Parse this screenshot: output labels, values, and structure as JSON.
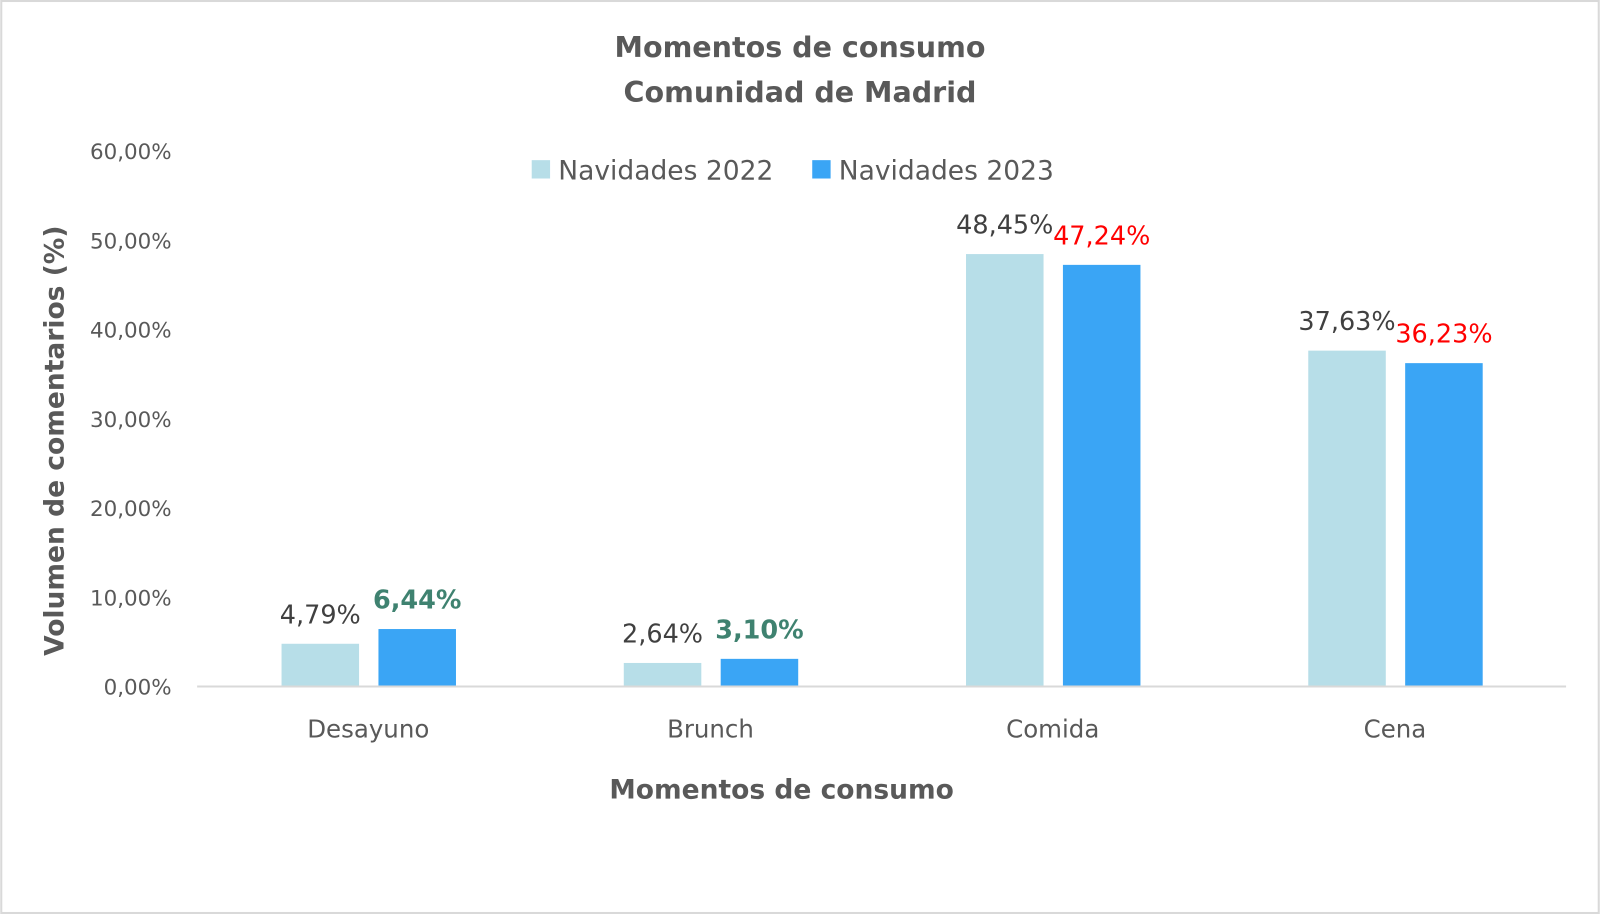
{
  "chart_data": {
    "type": "bar",
    "title": [
      "Momentos de consumo",
      "Comunidad de Madrid"
    ],
    "xlabel": "Momentos de consumo",
    "ylabel": "Volumen de comentarios (%)",
    "categories": [
      "Desayuno",
      "Brunch",
      "Comida",
      "Cena"
    ],
    "ylim": [
      0,
      60
    ],
    "yticks": [
      0,
      10,
      20,
      30,
      40,
      50,
      60
    ],
    "ytick_labels": [
      "0,00%",
      "10,00%",
      "20,00%",
      "30,00%",
      "40,00%",
      "50,00%",
      "60,00%"
    ],
    "grid": false,
    "legend_position": "top-center",
    "series": [
      {
        "name": "Navidades 2022",
        "color": "#b7dee8",
        "values": [
          4.79,
          2.64,
          48.45,
          37.63
        ],
        "labels": [
          "4,79%",
          "2,64%",
          "48,45%",
          "37,63%"
        ],
        "label_colors": [
          "#404040",
          "#404040",
          "#404040",
          "#404040"
        ],
        "label_bold": [
          false,
          false,
          false,
          false
        ]
      },
      {
        "name": "Navidades 2023",
        "color": "#3aa5f5",
        "values": [
          6.44,
          3.1,
          47.24,
          36.23
        ],
        "labels": [
          "6,44%",
          "3,10%",
          "47,24%",
          "36,23%"
        ],
        "label_colors": [
          "#3f8270",
          "#3f8270",
          "#ff0000",
          "#ff0000"
        ],
        "label_bold": [
          true,
          true,
          false,
          false
        ]
      }
    ]
  }
}
